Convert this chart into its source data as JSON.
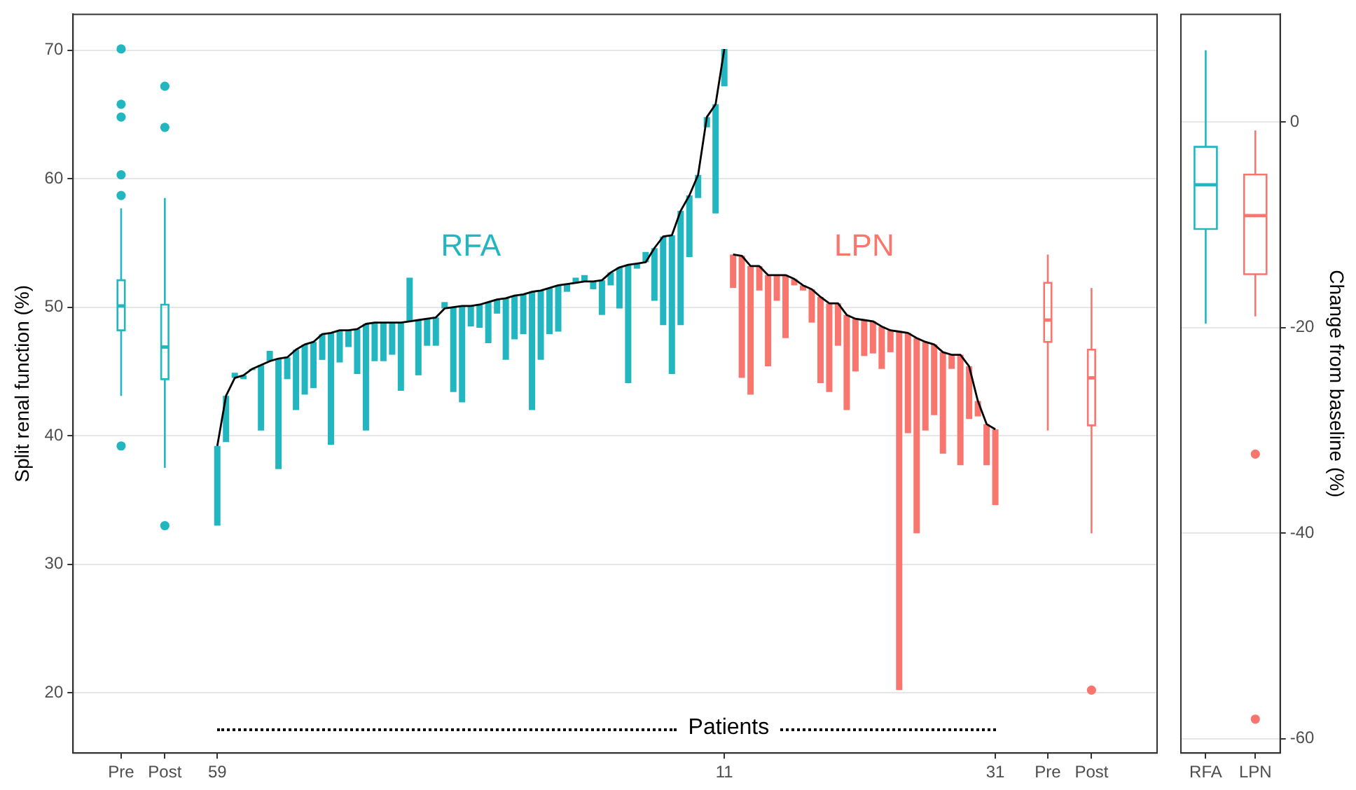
{
  "chart_data": [
    {
      "type": "bar",
      "ylabel": "Split renal function (%)",
      "ylim": [
        15.3,
        72.8
      ],
      "yticks": [
        20,
        30,
        40,
        50,
        60,
        70
      ],
      "grid": "y",
      "categories": [
        null,
        null,
        null,
        null,
        null,
        "Pre",
        null,
        null,
        null,
        null,
        "Post",
        null,
        null,
        null,
        null,
        null,
        "59",
        null,
        null,
        null,
        null,
        null,
        null,
        null,
        null,
        null,
        null,
        null,
        null,
        null,
        null,
        null,
        null,
        null,
        null,
        null,
        null,
        null,
        null,
        null,
        null,
        null,
        null,
        null,
        null,
        null,
        null,
        null,
        null,
        null,
        null,
        null,
        null,
        null,
        null,
        null,
        null,
        null,
        null,
        null,
        null,
        null,
        null,
        null,
        null,
        null,
        null,
        null,
        null,
        null,
        null,
        null,
        null,
        null,
        "11",
        null,
        null,
        null,
        null,
        null,
        null,
        null,
        null,
        null,
        null,
        null,
        null,
        null,
        null,
        null,
        null,
        null,
        null,
        null,
        null,
        null,
        null,
        null,
        null,
        null,
        null,
        null,
        null,
        null,
        null,
        "31",
        null,
        null,
        null,
        null,
        null,
        "Pre",
        null,
        null,
        null,
        null,
        "Post",
        null,
        null,
        null,
        null,
        null,
        null,
        null
      ],
      "annotations": [
        "Patients"
      ],
      "series": [
        {
          "type": "bar",
          "name": "RFA",
          "color": "#22b6c1",
          "base": [
            null,
            null,
            null,
            null,
            null,
            null,
            null,
            null,
            null,
            null,
            null,
            null,
            null,
            null,
            null,
            null,
            39.2,
            43.1,
            44.5,
            44.7,
            45.2,
            45.5,
            45.8,
            46.0,
            46.1,
            46.7,
            47.1,
            47.3,
            47.9,
            48.0,
            48.2,
            48.2,
            48.3,
            48.7,
            48.8,
            48.8,
            48.8,
            48.8,
            48.9,
            49.0,
            49.1,
            49.2,
            49.9,
            50.0,
            50.1,
            50.1,
            50.2,
            50.4,
            50.6,
            50.7,
            50.9,
            51.0,
            51.2,
            51.3,
            51.5,
            51.7,
            51.8,
            51.9,
            52.0,
            52.0,
            52.1,
            52.7,
            53.1,
            53.3,
            53.4,
            53.5,
            54.6,
            55.5,
            55.6,
            57.5,
            58.7,
            60.3,
            64.8,
            65.8,
            70.1,
            null,
            null,
            null,
            null,
            null,
            null,
            null,
            null,
            null,
            null,
            null,
            null,
            null,
            null,
            null,
            null,
            null,
            null,
            null,
            null,
            null,
            null,
            null,
            null,
            null,
            null,
            null,
            null,
            null,
            null,
            null,
            null,
            null,
            null,
            null,
            null,
            null,
            null,
            null,
            null,
            null,
            null,
            null,
            null,
            null,
            null,
            null,
            null,
            null
          ],
          "values": [
            null,
            null,
            null,
            null,
            null,
            null,
            null,
            null,
            null,
            null,
            null,
            null,
            null,
            null,
            null,
            null,
            -6.2,
            -3.6,
            0.4,
            -0.3,
            -0.1,
            -5.1,
            0.8,
            -8.6,
            -1.7,
            -4.7,
            -3.9,
            -3.6,
            -2.0,
            -8.7,
            -2.5,
            -1.3,
            -3.5,
            -8.3,
            -3.0,
            -3.0,
            -2.5,
            -5.3,
            3.4,
            -4.3,
            -2.1,
            -2.2,
            0.5,
            -6.6,
            -7.5,
            -1.6,
            -1.8,
            -3.2,
            -1.1,
            -4.8,
            -3.4,
            -3.1,
            -9.2,
            -5.4,
            -3.6,
            -3.6,
            -0.6,
            0.4,
            0.5,
            -0.6,
            -2.7,
            -1.0,
            -3.2,
            -9.2,
            -0.4,
            0.8,
            -4.1,
            -6.9,
            -10.8,
            -8.9,
            -4.8,
            -1.8,
            -0.8,
            -8.5,
            -2.9,
            null,
            null,
            null,
            null,
            null,
            null,
            null,
            null,
            null,
            null,
            null,
            null,
            null,
            null,
            null,
            null,
            null,
            null,
            null,
            null,
            null,
            null,
            null,
            null,
            null,
            null,
            null,
            null,
            null,
            null,
            null,
            null,
            null,
            null,
            null,
            null,
            null,
            null,
            null,
            null,
            null,
            null,
            null,
            null,
            null,
            null,
            null,
            null,
            null
          ]
        },
        {
          "type": "bar",
          "name": "LPN",
          "color": "#f8766d",
          "base": [
            null,
            null,
            null,
            null,
            null,
            null,
            null,
            null,
            null,
            null,
            null,
            null,
            null,
            null,
            null,
            null,
            null,
            null,
            null,
            null,
            null,
            null,
            null,
            null,
            null,
            null,
            null,
            null,
            null,
            null,
            null,
            null,
            null,
            null,
            null,
            null,
            null,
            null,
            null,
            null,
            null,
            null,
            null,
            null,
            null,
            null,
            null,
            null,
            null,
            null,
            null,
            null,
            null,
            null,
            null,
            null,
            null,
            null,
            null,
            null,
            null,
            null,
            null,
            null,
            null,
            null,
            null,
            null,
            null,
            null,
            null,
            null,
            null,
            null,
            null,
            54.1,
            54.0,
            53.2,
            53.2,
            52.5,
            52.5,
            52.5,
            52.2,
            51.7,
            51.4,
            50.8,
            50.3,
            50.3,
            49.4,
            49.1,
            49.0,
            48.9,
            48.5,
            48.2,
            48.1,
            48.0,
            47.6,
            47.3,
            47.1,
            46.5,
            46.3,
            46.3,
            45.4,
            42.7,
            40.9,
            40.5,
            null,
            null,
            null,
            null,
            null,
            null,
            null,
            null,
            null,
            null,
            null,
            null,
            null,
            null,
            null,
            null,
            null,
            null
          ],
          "values": [
            null,
            null,
            null,
            null,
            null,
            null,
            null,
            null,
            null,
            null,
            null,
            null,
            null,
            null,
            null,
            null,
            null,
            null,
            null,
            null,
            null,
            null,
            null,
            null,
            null,
            null,
            null,
            null,
            null,
            null,
            null,
            null,
            null,
            null,
            null,
            null,
            null,
            null,
            null,
            null,
            null,
            null,
            null,
            null,
            null,
            null,
            null,
            null,
            null,
            null,
            null,
            null,
            null,
            null,
            null,
            null,
            null,
            null,
            null,
            null,
            null,
            null,
            null,
            null,
            null,
            null,
            null,
            null,
            null,
            null,
            null,
            null,
            null,
            null,
            null,
            -2.6,
            -9.5,
            -10.0,
            -1.9,
            -7.1,
            -2.0,
            -4.9,
            -0.5,
            -0.4,
            -2.6,
            -6.7,
            -6.9,
            -3.3,
            -7.4,
            -4.1,
            -2.8,
            -2.5,
            -3.3,
            -1.7,
            -27.9,
            -7.8,
            -15.2,
            -6.9,
            -5.5,
            -7.9,
            -1.1,
            -8.6,
            -4.1,
            -1.2,
            -3.2,
            -5.9,
            null,
            null,
            null,
            null,
            null,
            null,
            null,
            null,
            null,
            null,
            null,
            null,
            null,
            null,
            null,
            null,
            null,
            null
          ]
        },
        {
          "type": "line",
          "color": "#000000",
          "values": [
            null,
            null,
            null,
            null,
            null,
            null,
            null,
            null,
            null,
            null,
            null,
            null,
            null,
            null,
            null,
            null,
            39.2,
            43.1,
            44.5,
            44.7,
            45.2,
            45.5,
            45.8,
            46.0,
            46.1,
            46.7,
            47.1,
            47.3,
            47.9,
            48.0,
            48.2,
            48.2,
            48.3,
            48.7,
            48.8,
            48.8,
            48.8,
            48.8,
            48.9,
            49.0,
            49.1,
            49.2,
            49.9,
            50.0,
            50.1,
            50.1,
            50.2,
            50.4,
            50.6,
            50.7,
            50.9,
            51.0,
            51.2,
            51.3,
            51.5,
            51.7,
            51.8,
            51.9,
            52.0,
            52.0,
            52.1,
            52.7,
            53.1,
            53.3,
            53.4,
            53.5,
            54.6,
            55.5,
            55.6,
            57.5,
            58.7,
            60.3,
            64.8,
            65.8,
            70.1,
            null,
            null,
            null,
            null,
            null,
            null,
            null,
            null,
            null,
            null,
            null,
            null,
            null,
            null,
            null,
            null,
            null,
            null,
            null,
            null,
            null,
            null,
            null,
            null,
            null,
            null,
            null,
            null,
            null,
            null,
            null,
            null,
            null,
            null,
            null,
            null,
            null,
            null,
            null,
            null,
            null,
            null,
            null,
            null,
            null,
            null,
            null,
            null,
            null
          ]
        },
        {
          "type": "line",
          "color": "#000000",
          "values": [
            null,
            null,
            null,
            null,
            null,
            null,
            null,
            null,
            null,
            null,
            null,
            null,
            null,
            null,
            null,
            null,
            null,
            null,
            null,
            null,
            null,
            null,
            null,
            null,
            null,
            null,
            null,
            null,
            null,
            null,
            null,
            null,
            null,
            null,
            null,
            null,
            null,
            null,
            null,
            null,
            null,
            null,
            null,
            null,
            null,
            null,
            null,
            null,
            null,
            null,
            null,
            null,
            null,
            null,
            null,
            null,
            null,
            null,
            null,
            null,
            null,
            null,
            null,
            null,
            null,
            null,
            null,
            null,
            null,
            null,
            null,
            null,
            null,
            null,
            null,
            54.1,
            54.0,
            53.2,
            53.2,
            52.5,
            52.5,
            52.5,
            52.2,
            51.7,
            51.4,
            50.8,
            50.3,
            50.3,
            49.4,
            49.1,
            49.0,
            48.9,
            48.5,
            48.2,
            48.1,
            48.0,
            47.6,
            47.3,
            47.1,
            46.5,
            46.3,
            46.3,
            45.4,
            42.7,
            40.9,
            40.5,
            null,
            null,
            null,
            null,
            null,
            null,
            null,
            null,
            null,
            null,
            null,
            null,
            null,
            null,
            null,
            null,
            null,
            null
          ]
        },
        {
          "type": "box",
          "color": "#22b6c1",
          "boxes": [
            null,
            null,
            null,
            null,
            null,
            {
              "low": 43.1,
              "q1": 48.2,
              "median": 50.1,
              "q3": 52.1,
              "high": 57.7,
              "outliers": [
                70.1,
                65.8,
                64.8,
                60.3,
                58.7,
                39.2
              ]
            },
            null,
            null,
            null,
            null,
            {
              "low": 37.5,
              "q1": 44.4,
              "median": 46.9,
              "q3": 50.2,
              "high": 58.5,
              "outliers": [
                67.2,
                64.0,
                33.0
              ]
            },
            null,
            null,
            null,
            null,
            null,
            null,
            null,
            null,
            null,
            null,
            null,
            null,
            null,
            null,
            null,
            null,
            null,
            null,
            null,
            null,
            null,
            null,
            null,
            null,
            null,
            null,
            null,
            null,
            null,
            null,
            null,
            null,
            null,
            null,
            null,
            null,
            null,
            null,
            null,
            null,
            null,
            null,
            null,
            null,
            null,
            null,
            null,
            null,
            null,
            null,
            null,
            null,
            null,
            null,
            null,
            null,
            null,
            null,
            null,
            null,
            null,
            null,
            null,
            null,
            null,
            null,
            null,
            null,
            null,
            null,
            null,
            null,
            null,
            null,
            null,
            null,
            null,
            null,
            null,
            null,
            null,
            null,
            null,
            null,
            null,
            null,
            null,
            null,
            null,
            null,
            null,
            null,
            null,
            null,
            null,
            null,
            null,
            null,
            null,
            null,
            null,
            null,
            null,
            null,
            null,
            null,
            null,
            null,
            null,
            null,
            null,
            null,
            null
          ]
        },
        {
          "type": "box",
          "color": "#f8766d",
          "boxes": [
            null,
            null,
            null,
            null,
            null,
            null,
            null,
            null,
            null,
            null,
            null,
            null,
            null,
            null,
            null,
            null,
            null,
            null,
            null,
            null,
            null,
            null,
            null,
            null,
            null,
            null,
            null,
            null,
            null,
            null,
            null,
            null,
            null,
            null,
            null,
            null,
            null,
            null,
            null,
            null,
            null,
            null,
            null,
            null,
            null,
            null,
            null,
            null,
            null,
            null,
            null,
            null,
            null,
            null,
            null,
            null,
            null,
            null,
            null,
            null,
            null,
            null,
            null,
            null,
            null,
            null,
            null,
            null,
            null,
            null,
            null,
            null,
            null,
            null,
            null,
            null,
            null,
            null,
            null,
            null,
            null,
            null,
            null,
            null,
            null,
            null,
            null,
            null,
            null,
            null,
            null,
            null,
            null,
            null,
            null,
            null,
            null,
            null,
            null,
            null,
            null,
            null,
            null,
            null,
            null,
            null,
            null,
            null,
            null,
            null,
            null,
            {
              "low": 40.4,
              "q1": 47.3,
              "median": 49.0,
              "q3": 51.9,
              "high": 54.1
            },
            null,
            null,
            null,
            null,
            {
              "low": 32.4,
              "q1": 40.8,
              "median": 44.5,
              "q3": 46.7,
              "high": 51.5,
              "outliers": [
                20.2
              ]
            },
            null,
            null,
            null,
            null,
            null,
            null,
            null
          ]
        }
      ]
    },
    {
      "type": "box",
      "categories": [
        "RFA",
        "LPN"
      ],
      "y2label": "Change from baseline (%)",
      "y2lim": [
        -61.4,
        10.5
      ],
      "y2ticks": [
        0,
        -20,
        -40,
        -60
      ],
      "grid": "y",
      "series": [
        {
          "axis": "y2",
          "colors": [
            "#22b6c1",
            "#f8766d"
          ],
          "boxes": [
            {
              "low": -19.6,
              "q1": -10.4,
              "median": -6.1,
              "q3": -2.4,
              "high": 7.0
            },
            {
              "low": -18.9,
              "q1": -14.8,
              "median": -9.1,
              "q3": -5.1,
              "high": -0.8,
              "outliers": [
                -32.3,
                -58.1
              ]
            }
          ]
        }
      ]
    }
  ]
}
